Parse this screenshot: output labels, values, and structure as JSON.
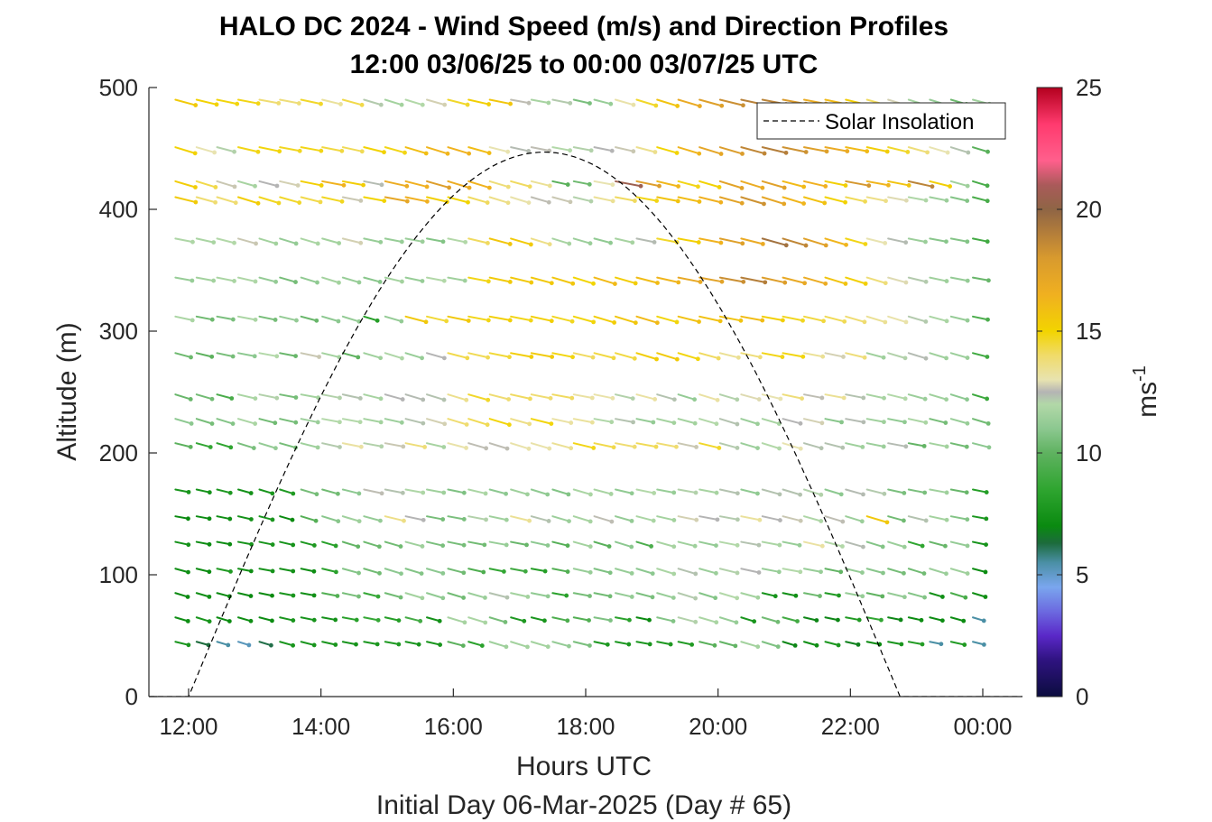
{
  "title_line1": "HALO DC 2024 - Wind Speed (m/s) and Direction Profiles",
  "title_line2": "12:00 03/06/25 to 00:00 03/07/25  UTC",
  "xlabel": "Hours UTC",
  "ylabel": "Altitude (m)",
  "footer": "Initial Day 06-Mar-2025 (Day # 65)",
  "colorbar_label_base": "ms",
  "colorbar_label_exp": "-1",
  "chart_data": {
    "type": "quiver",
    "x_unit": "hours since 12:00 UTC 06-Mar-2025",
    "xlim": [
      -0.6,
      12.6
    ],
    "ylim": [
      0,
      500
    ],
    "x_ticks": [
      {
        "value": 0,
        "label": "12:00"
      },
      {
        "value": 2,
        "label": "14:00"
      },
      {
        "value": 4,
        "label": "16:00"
      },
      {
        "value": 6,
        "label": "18:00"
      },
      {
        "value": 8,
        "label": "20:00"
      },
      {
        "value": 10,
        "label": "22:00"
      },
      {
        "value": 12,
        "label": "00:00"
      }
    ],
    "y_ticks": [
      0,
      100,
      200,
      300,
      400,
      500
    ],
    "colorbar": {
      "range": [
        0,
        25
      ],
      "ticks": [
        0,
        5,
        10,
        15,
        20,
        25
      ],
      "colormap": [
        [
          0,
          "#0b0c3f"
        ],
        [
          1.5,
          "#2f1380"
        ],
        [
          2.5,
          "#5a28c8"
        ],
        [
          3.5,
          "#6c6ae0"
        ],
        [
          4.5,
          "#7aa6ee"
        ],
        [
          5.5,
          "#4a8fa5"
        ],
        [
          6.3,
          "#1c6b3c"
        ],
        [
          7,
          "#0a8a10"
        ],
        [
          8.5,
          "#2fa530"
        ],
        [
          10,
          "#5fb260"
        ],
        [
          11,
          "#8cc890"
        ],
        [
          12,
          "#b2d8a8"
        ],
        [
          12.5,
          "#b4b4b4"
        ],
        [
          13,
          "#e8e3b0"
        ],
        [
          14,
          "#f0db6a"
        ],
        [
          15,
          "#f2d400"
        ],
        [
          16.5,
          "#f0b020"
        ],
        [
          18,
          "#d89a2e"
        ],
        [
          19,
          "#b47e3a"
        ],
        [
          20,
          "#8f6545"
        ],
        [
          21,
          "#aa5a5a"
        ],
        [
          22,
          "#ff5f8c"
        ],
        [
          23.5,
          "#ff3a6e"
        ],
        [
          25,
          "#b3001e"
        ]
      ]
    },
    "wind_levels_m": [
      45,
      65,
      85,
      105,
      127,
      148,
      170,
      208,
      228,
      248,
      282,
      312,
      344,
      376,
      410,
      423,
      451,
      490
    ],
    "wind_times_h": [
      -0.2,
      0.12,
      0.43,
      0.75,
      1.07,
      1.38,
      1.7,
      2.02,
      2.33,
      2.65,
      2.97,
      3.28,
      3.6,
      3.92,
      4.23,
      4.55,
      4.87,
      5.18,
      5.5,
      5.82,
      6.13,
      6.45,
      6.77,
      7.08,
      7.4,
      7.72,
      8.03,
      8.35,
      8.67,
      8.98,
      9.3,
      9.62,
      9.93,
      10.25,
      10.57,
      10.88,
      11.2,
      11.52,
      11.85
    ],
    "wind_speed_ms": [
      [
        7.6,
        6.3,
        5.5,
        5.2,
        6.2,
        7.6,
        7.6,
        7.6,
        7.5,
        7.7,
        7.9,
        7.5,
        7.6,
        9.9,
        8.3,
        11.5,
        11.6,
        11.6,
        11.2,
        10.6,
        7.7,
        7.7,
        7.6,
        7.8,
        7.9,
        9.8,
        10.1,
        11.6,
        10.7,
        6.9,
        7.2,
        7.7,
        6.8,
        7.0,
        7.6,
        8.0,
        5.5,
        7.9,
        5.5
      ],
      [
        7.2,
        7.6,
        7.1,
        7.2,
        7.1,
        7.6,
        7.5,
        7.4,
        8.2,
        8.7,
        8.1,
        9.2,
        7.4,
        11.7,
        11.8,
        10.5,
        7.8,
        7.6,
        9.4,
        9.6,
        10.7,
        8.3,
        7.0,
        10.8,
        12.1,
        11.8,
        11.3,
        7.6,
        10.4,
        9.1,
        6.9,
        6.9,
        7.9,
        8.6,
        6.9,
        7.1,
        7.1,
        7.1,
        5.5
      ],
      [
        7.0,
        7.3,
        7.0,
        7.0,
        7.0,
        7.6,
        7.3,
        9.6,
        10.5,
        8.7,
        10.4,
        11.6,
        11.1,
        10.4,
        11.4,
        12.3,
        11.6,
        11.1,
        8.2,
        10.5,
        10.4,
        11.2,
        10.6,
        11.3,
        12.2,
        10.8,
        12.0,
        11.6,
        7.5,
        7.3,
        10.3,
        7.9,
        11.3,
        10.0,
        11.2,
        10.8,
        7.3,
        9.3,
        7.2
      ],
      [
        7.3,
        7.1,
        7.9,
        7.2,
        7.5,
        7.4,
        7.2,
        8.3,
        10.8,
        10.4,
        11.0,
        10.8,
        11.0,
        10.4,
        9.5,
        8.6,
        9.0,
        8.1,
        9.6,
        11.3,
        10.7,
        11.3,
        11.0,
        11.8,
        12.3,
        11.4,
        12.1,
        12.5,
        11.3,
        12.0,
        11.3,
        10.1,
        11.2,
        10.9,
        10.5,
        10.4,
        11.4,
        11.5,
        7.1
      ],
      [
        7.4,
        7.1,
        7.1,
        7.5,
        7.6,
        7.5,
        7.8,
        8.2,
        10.1,
        10.3,
        10.4,
        11.5,
        10.6,
        10.5,
        10.4,
        11.3,
        10.2,
        11.0,
        9.7,
        11.6,
        9.8,
        11.0,
        9.4,
        11.7,
        11.5,
        11.2,
        12.0,
        12.3,
        11.8,
        11.3,
        13.2,
        12.0,
        12.4,
        10.8,
        11.4,
        8.5,
        10.2,
        11.2,
        7.5
      ],
      [
        7.0,
        7.1,
        7.2,
        7.4,
        7.6,
        7.0,
        9.7,
        10.9,
        11.5,
        11.2,
        13.6,
        12.5,
        10.5,
        10.6,
        12.1,
        11.5,
        13.4,
        12.3,
        11.4,
        11.7,
        12.6,
        11.2,
        11.8,
        11.6,
        12.8,
        12.5,
        12.2,
        13.3,
        12.5,
        12.7,
        11.9,
        12.6,
        11.4,
        15.5,
        10.4,
        12.3,
        11.6,
        10.8,
        7.7
      ],
      [
        7.6,
        7.5,
        7.8,
        7.4,
        7.6,
        7.9,
        10.5,
        10.4,
        11.0,
        12.6,
        12.3,
        11.9,
        11.5,
        10.7,
        11.8,
        11.0,
        11.5,
        11.1,
        10.8,
        11.8,
        11.7,
        11.1,
        12.0,
        11.3,
        12.1,
        11.7,
        12.3,
        11.1,
        12.3,
        12.3,
        12.1,
        11.0,
        12.4,
        12.2,
        10.6,
        10.6,
        11.5,
        10.2,
        8.1
      ],
      [
        9.9,
        8.6,
        8.5,
        10.6,
        11.2,
        10.5,
        11.5,
        12.2,
        13.2,
        12.1,
        12.7,
        13.8,
        11.7,
        13.1,
        12.6,
        12.6,
        13.1,
        13.1,
        13.4,
        14.8,
        14.3,
        13.9,
        14.2,
        13.9,
        12.7,
        14.6,
        12.2,
        11.4,
        12.0,
        13.0,
        12.3,
        12.3,
        11.5,
        11.4,
        12.4,
        10.1,
        11.6,
        10.4,
        11.0
      ],
      [
        11.0,
        10.5,
        10.8,
        11.8,
        10.4,
        10.5,
        11.4,
        12.0,
        12.0,
        11.6,
        11.4,
        12.3,
        12.8,
        13.9,
        14.2,
        14.9,
        13.6,
        14.9,
        13.2,
        13.3,
        11.9,
        12.3,
        11.2,
        11.6,
        11.6,
        12.0,
        12.3,
        11.4,
        11.7,
        12.5,
        12.8,
        10.9,
        12.4,
        11.5,
        11.1,
        11.8,
        10.5,
        11.3,
        10.4
      ],
      [
        10.2,
        10.4,
        9.3,
        11.8,
        12.1,
        10.5,
        11.6,
        12.1,
        12.3,
        11.7,
        12.5,
        12.4,
        12.3,
        13.5,
        14.6,
        13.9,
        14.1,
        13.9,
        14.1,
        13.2,
        13.1,
        12.1,
        13.2,
        12.3,
        11.2,
        13.2,
        12.1,
        12.9,
        13.0,
        13.8,
        12.6,
        13.4,
        12.3,
        11.7,
        12.0,
        11.4,
        11.5,
        11.0,
        8.9
      ],
      [
        10.3,
        9.9,
        10.5,
        11.0,
        12.0,
        10.2,
        12.7,
        11.6,
        10.0,
        11.5,
        11.9,
        11.3,
        12.5,
        14.3,
        14.2,
        14.5,
        15.3,
        15.4,
        14.9,
        14.1,
        14.4,
        14.4,
        15.3,
        15.4,
        14.9,
        14.1,
        13.4,
        13.8,
        14.8,
        14.9,
        13.4,
        12.8,
        13.8,
        11.5,
        12.1,
        12.4,
        11.5,
        11.4,
        9.0
      ],
      [
        11.8,
        10.3,
        10.6,
        11.8,
        10.5,
        11.2,
        10.2,
        11.0,
        11.2,
        8.1,
        11.2,
        15.5,
        14.5,
        15.5,
        14.8,
        15.2,
        14.8,
        15.2,
        14.7,
        14.9,
        15.3,
        15.6,
        16.1,
        14.9,
        15.8,
        15.8,
        15.7,
        16.0,
        15.2,
        14.7,
        14.4,
        14.2,
        13.9,
        13.4,
        13.1,
        12.2,
        11.8,
        11.2,
        9.4
      ],
      [
        11.3,
        11.6,
        11.8,
        11.9,
        11.2,
        10.5,
        11.1,
        11.6,
        11.3,
        10.9,
        11.6,
        11.3,
        12.0,
        11.5,
        14.8,
        15.4,
        15.5,
        15.5,
        15.6,
        15.0,
        16.1,
        15.3,
        16.0,
        16.3,
        17.0,
        17.4,
        18.4,
        19.0,
        17.7,
        17.0,
        16.8,
        15.7,
        15.2,
        13.8,
        12.9,
        12.2,
        11.5,
        11.2,
        10.2
      ],
      [
        11.9,
        11.8,
        12.0,
        12.7,
        11.6,
        11.2,
        11.8,
        11.6,
        12.8,
        11.3,
        11.3,
        11.4,
        10.8,
        12.0,
        14.1,
        15.6,
        15.4,
        13.6,
        11.7,
        11.4,
        11.1,
        11.7,
        12.4,
        14.6,
        15.2,
        16.4,
        17.6,
        16.9,
        19.5,
        18.7,
        17.5,
        16.3,
        14.8,
        13.0,
        12.4,
        11.4,
        10.9,
        10.8,
        9.1
      ],
      [
        15.4,
        13.9,
        13.9,
        15.3,
        14.7,
        14.6,
        14.3,
        14.7,
        12.7,
        15.0,
        17.1,
        16.5,
        15.2,
        15.0,
        14.1,
        13.6,
        13.1,
        12.6,
        12.7,
        12.1,
        13.4,
        14.1,
        14.8,
        15.7,
        16.0,
        16.5,
        17.4,
        18.3,
        17.2,
        16.3,
        15.8,
        15.1,
        14.2,
        13.6,
        12.9,
        11.9,
        11.4,
        10.8,
        9.3
      ],
      [
        15.3,
        14.3,
        12.7,
        11.7,
        12.5,
        12.8,
        15.2,
        16.4,
        15.3,
        12.4,
        16.8,
        16.5,
        17.7,
        16.8,
        16.4,
        13.8,
        14.1,
        13.4,
        9.8,
        10.3,
        13.0,
        20.5,
        17.7,
        16.2,
        14.8,
        15.1,
        17.4,
        16.8,
        17.5,
        16.1,
        16.5,
        15.2,
        18.1,
        16.3,
        15.7,
        18.8,
        15.2,
        11.5,
        9.3
      ],
      [
        15.1,
        13.0,
        12.1,
        14.8,
        14.9,
        14.7,
        14.8,
        14.4,
        14.2,
        15.1,
        14.8,
        15.9,
        16.3,
        16.4,
        16.0,
        13.0,
        12.4,
        12.6,
        12.0,
        12.1,
        12.5,
        12.7,
        13.5,
        15.0,
        16.3,
        17.2,
        17.8,
        18.7,
        19.0,
        18.3,
        17.6,
        16.9,
        16.1,
        15.3,
        14.6,
        13.8,
        13.0,
        12.3,
        9.8
      ],
      [
        15.4,
        15.1,
        14.9,
        14.8,
        13.9,
        13.8,
        14.6,
        13.3,
        14.3,
        12.2,
        11.6,
        12.0,
        12.8,
        14.6,
        15.2,
        15.6,
        12.6,
        11.7,
        12.2,
        10.6,
        11.3,
        13.1,
        14.6,
        15.7,
        16.9,
        17.6,
        18.4,
        18.9,
        18.8,
        17.9,
        16.8,
        16.1,
        15.3,
        14.1,
        12.8,
        11.6,
        11.2,
        10.3,
        11.5
      ]
    ]
  },
  "legend": {
    "label": "Solar Insolation"
  }
}
